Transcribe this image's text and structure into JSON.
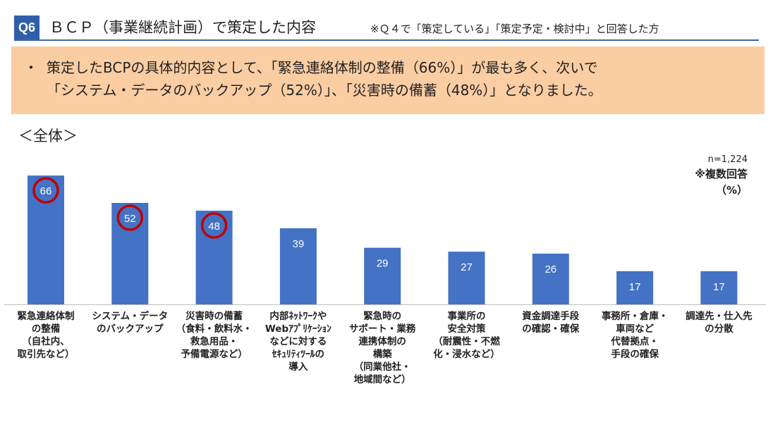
{
  "header": {
    "badge": "Q6",
    "title": "ＢＣＰ（事業継続計画）で策定した内容",
    "note": "※Ｑ４で「策定している」「策定予定・検討中」と回答した方"
  },
  "summary": {
    "bullet": "・",
    "line1": "策定したBCPの具体的内容として、「緊急連絡体制の整備（66%）」が最も多く、次いで",
    "line2": "「システム・データのバックアップ（52%）」、「災害時の備蓄（48%）」となりました。"
  },
  "subtitle": "＜全体＞",
  "meta": {
    "n": "n=1,224",
    "multiple": "※複数回答",
    "unit": "（%）"
  },
  "colors": {
    "bar": "#4472c4",
    "highlight_circle": "#c00000",
    "summary_bg": "#fbcda3",
    "header_accent": "#2f5fa8"
  },
  "chart_data": {
    "type": "bar",
    "categories": [
      [
        "緊急連絡体制",
        "の整備",
        "（自社内、",
        "取引先など）"
      ],
      [
        "システム・データ",
        "のバックアップ"
      ],
      [
        "災害時の備蓄",
        "（食料・飲料水・",
        "救急用品・",
        "予備電源など）"
      ],
      [
        "内部ﾈｯﾄﾜｰｸや",
        "Webｱﾌﾟﾘｹｰｼｮﾝ",
        "などに対する",
        "ｾｷｭﾘﾃｨﾂｰﾙの",
        "導入"
      ],
      [
        "緊急時の",
        "サポート・業務",
        "連携体制の",
        "構築",
        "（同業他社・",
        "地域間など）"
      ],
      [
        "事業所の",
        "安全対策",
        "（耐震性・不燃",
        "化・浸水など）"
      ],
      [
        "資金調達手段",
        "の確認・確保"
      ],
      [
        "事務所・倉庫・",
        "車両など",
        "代替拠点・",
        "手段の確保"
      ],
      [
        "調達先・仕入先",
        "の分散"
      ]
    ],
    "values": [
      66,
      52,
      48,
      39,
      29,
      27,
      26,
      17,
      17
    ],
    "highlighted": [
      0,
      1,
      2
    ],
    "data_labels": [
      "66",
      "52",
      "48",
      "39",
      "29",
      "27",
      "26",
      "17",
      "17"
    ],
    "ylim": [
      0,
      70
    ],
    "grid": false,
    "legend": "none"
  }
}
